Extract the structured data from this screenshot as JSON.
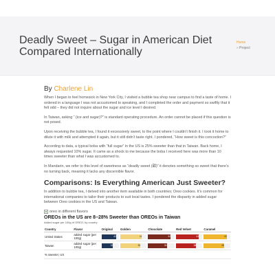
{
  "page": {
    "title": "Deadly Sweet – Sugar in American Diet Compared Internationally",
    "breadcrumb": {
      "home": "Home",
      "separator": "»",
      "current": "Project"
    }
  },
  "article": {
    "byline_prefix": "By",
    "author": "Charlene Lin",
    "paragraphs": [
      "When I began to feel homesick in New York City, I visited a bubble tea shop near campus to find a taste of home. I ordered in a language I was not accustomed to speaking, and I completed the order and payment so swiftly that it felt odd – they did not inquire about the sugar and ice level I desired.",
      "In Taiwan, asking “        (ice and sugar)?” is standard operating procedure. An order cannot be placed if this question is not posed.",
      "Upon receiving the bubble tea, I found it excessively sweet, to the point where I couldn’t finish it. I took it home to dilute it with milk and attempted it again, but it still didn’t taste right. I pondered, “How sweet is this concoction?”",
      "According to data, a typical boba with “full sugar” in the US is 25% sweeter than that in Taiwan. Back home, I always requested 10% sugar. It came as a shock to me because the boba I received here was more than 10 times sweeter than what I was accustomed to.",
      "In Mandarin, we refer to this level of sweetness as “deadly sweet (甜)” it denotes something so sweet that there’s no turning back, meaning it lacks any discernible flavor."
    ],
    "section_heading": "Comparisons: Is Everything American Just Sweeter?",
    "section_paragraph": "In addition to bubble tea, I delved into another item available in both countries; Oreo cookies. It’s common for international companies to tailor their products to suit local tastes. I pondered the disparity in added sugar between Oreo cookies in the US and Taiwan."
  },
  "figure": {
    "alt_text": "oreo in different flavors",
    "icon": "broken-image-icon"
  },
  "chart_data": {
    "type": "table",
    "title": "OREOs in the US are 8–28% Sweeter than OREOs in Taiwan",
    "subtitle": "Added sugar per 100g of OREO, by country",
    "columns": [
      "Country",
      "Flavor",
      "Original",
      "Golden",
      "Chocolate",
      "Red Velvet",
      "Caramel"
    ],
    "rows": [
      {
        "country": "United States",
        "flavor": "added sugar (per 100g)",
        "values": [
          42,
          41,
          42,
          43,
          43
        ]
      },
      {
        "country": "Taiwan",
        "flavor": "added sugar (per 100g)",
        "values": [
          33,
          38,
          35,
          38,
          38
        ]
      },
      {
        "country": "% sweeter, US",
        "flavor": "",
        "values": [
          null,
          null,
          null,
          null,
          null
        ]
      }
    ],
    "colors": {
      "Original": "#1f3556",
      "Golden": "#f2d27a",
      "Chocolate": "#7a2a1d",
      "Red Velvet": "#b8231f",
      "Caramel": "#f0b52e"
    }
  }
}
